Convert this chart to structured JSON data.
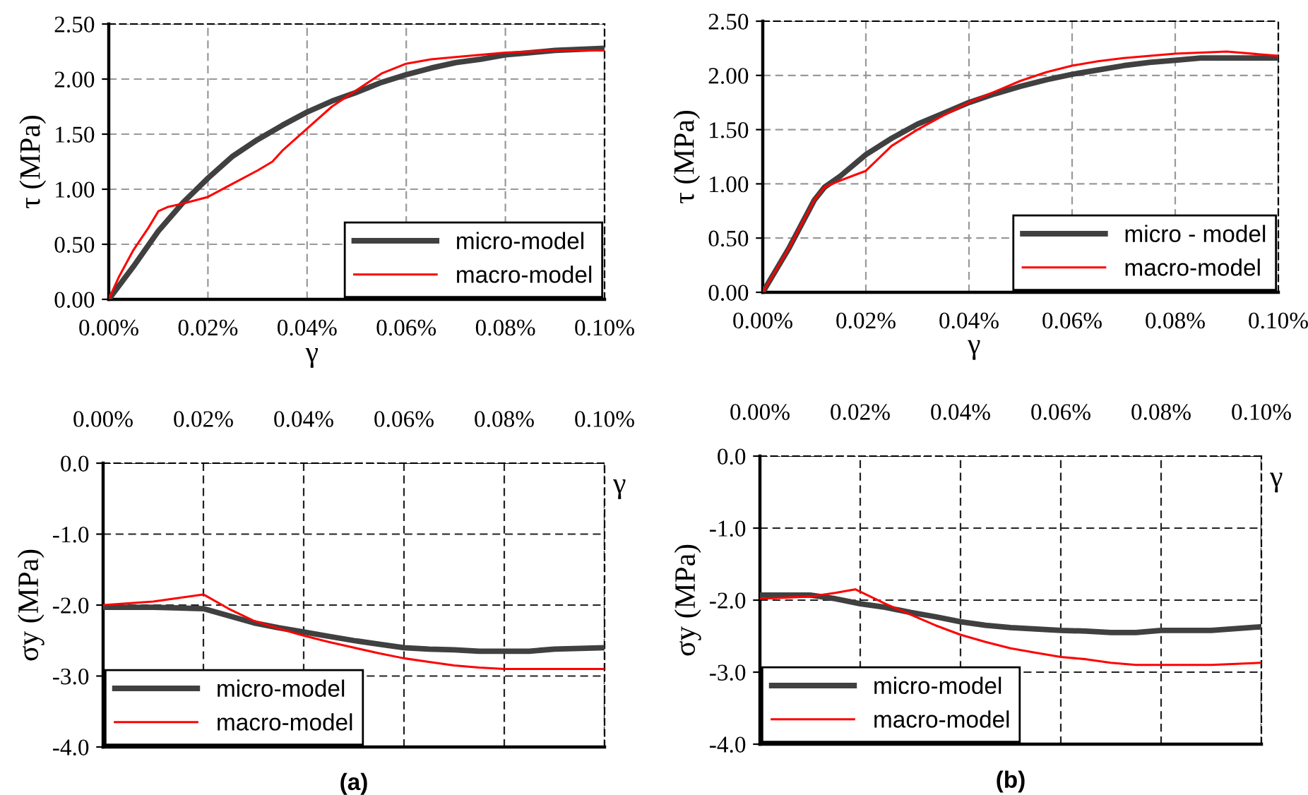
{
  "chart_data": [
    {
      "type": "line",
      "ylabel": "τ (MPa)",
      "xlabel": "γ",
      "xlim": [
        0,
        0.1
      ],
      "ylim": [
        0,
        2.5
      ],
      "xticks": [
        {
          "value": 0,
          "label": "0.00%"
        },
        {
          "value": 0.02,
          "label": "0.02%"
        },
        {
          "value": 0.04,
          "label": "0.04%"
        },
        {
          "value": 0.06,
          "label": "0.06%"
        },
        {
          "value": 0.08,
          "label": "0.08%"
        },
        {
          "value": 0.1,
          "label": "0.10%"
        }
      ],
      "yticks": [
        {
          "value": 0,
          "label": "0.00"
        },
        {
          "value": 0.5,
          "label": "0.50"
        },
        {
          "value": 1,
          "label": "1.00"
        },
        {
          "value": 1.5,
          "label": "1.50"
        },
        {
          "value": 2,
          "label": "2.00"
        },
        {
          "value": 2.5,
          "label": "2.50"
        }
      ],
      "grid": true,
      "legend": "bottom right",
      "line_style": "solid",
      "series": [
        {
          "name": "micro-model",
          "color": "#404040",
          "x": [
            0,
            0.005,
            0.01,
            0.015,
            0.02,
            0.025,
            0.03,
            0.035,
            0.04,
            0.045,
            0.05,
            0.055,
            0.06,
            0.065,
            0.07,
            0.075,
            0.08,
            0.085,
            0.09,
            0.095,
            0.1
          ],
          "values": [
            0,
            0.3,
            0.62,
            0.88,
            1.1,
            1.3,
            1.45,
            1.58,
            1.7,
            1.8,
            1.88,
            1.97,
            2.04,
            2.1,
            2.15,
            2.18,
            2.22,
            2.24,
            2.26,
            2.27,
            2.28
          ]
        },
        {
          "name": "macro-model",
          "color": "#ff0000",
          "x": [
            0,
            0.002,
            0.005,
            0.008,
            0.01,
            0.012,
            0.015,
            0.02,
            0.025,
            0.03,
            0.033,
            0.035,
            0.04,
            0.045,
            0.05,
            0.055,
            0.06,
            0.065,
            0.07,
            0.08,
            0.09,
            0.1
          ],
          "values": [
            0,
            0.2,
            0.45,
            0.65,
            0.8,
            0.84,
            0.87,
            0.93,
            1.05,
            1.17,
            1.25,
            1.35,
            1.55,
            1.75,
            1.9,
            2.05,
            2.14,
            2.18,
            2.2,
            2.24,
            2.26,
            2.26
          ]
        }
      ]
    },
    {
      "type": "line",
      "ylabel": "τ (MPa)",
      "xlabel": "γ",
      "xlim": [
        0,
        0.1
      ],
      "ylim": [
        0,
        2.5
      ],
      "xticks": [
        {
          "value": 0,
          "label": "0.00%"
        },
        {
          "value": 0.02,
          "label": "0.02%"
        },
        {
          "value": 0.04,
          "label": "0.04%"
        },
        {
          "value": 0.06,
          "label": "0.06%"
        },
        {
          "value": 0.08,
          "label": "0.08%"
        },
        {
          "value": 0.1,
          "label": "0.10%"
        }
      ],
      "yticks": [
        {
          "value": 0,
          "label": "0.00"
        },
        {
          "value": 0.5,
          "label": "0.50"
        },
        {
          "value": 1,
          "label": "1.00"
        },
        {
          "value": 1.5,
          "label": "1.50"
        },
        {
          "value": 2,
          "label": "2.00"
        },
        {
          "value": 2.5,
          "label": "2.50"
        }
      ],
      "grid": true,
      "legend": "bottom right",
      "line_style": "solid",
      "series": [
        {
          "name": "micro - model",
          "color": "#404040",
          "x": [
            0,
            0.005,
            0.01,
            0.012,
            0.015,
            0.02,
            0.025,
            0.03,
            0.035,
            0.04,
            0.045,
            0.05,
            0.055,
            0.06,
            0.065,
            0.07,
            0.075,
            0.08,
            0.085,
            0.1
          ],
          "values": [
            0,
            0.4,
            0.85,
            0.97,
            1.07,
            1.27,
            1.42,
            1.55,
            1.65,
            1.75,
            1.83,
            1.9,
            1.96,
            2.01,
            2.05,
            2.09,
            2.12,
            2.14,
            2.16,
            2.16
          ]
        },
        {
          "name": "macro-model",
          "color": "#ff0000",
          "x": [
            0,
            0.005,
            0.01,
            0.012,
            0.015,
            0.02,
            0.025,
            0.03,
            0.035,
            0.04,
            0.045,
            0.05,
            0.055,
            0.06,
            0.065,
            0.07,
            0.08,
            0.09,
            0.1
          ],
          "values": [
            0,
            0.4,
            0.85,
            0.97,
            1.03,
            1.12,
            1.35,
            1.5,
            1.63,
            1.75,
            1.85,
            1.95,
            2.03,
            2.09,
            2.13,
            2.16,
            2.2,
            2.22,
            2.18
          ]
        }
      ]
    },
    {
      "type": "line",
      "ylabel": "σy (MPa)",
      "xlabel": "γ",
      "xlim": [
        0,
        0.1
      ],
      "ylim": [
        -4,
        0
      ],
      "xticks": [
        {
          "value": 0,
          "label": "0.00%"
        },
        {
          "value": 0.02,
          "label": "0.02%"
        },
        {
          "value": 0.04,
          "label": "0.04%"
        },
        {
          "value": 0.06,
          "label": "0.06%"
        },
        {
          "value": 0.08,
          "label": "0.08%"
        },
        {
          "value": 0.1,
          "label": "0.10%"
        }
      ],
      "yticks": [
        {
          "value": -4,
          "label": "-4.0"
        },
        {
          "value": -3,
          "label": "-3.0"
        },
        {
          "value": -2,
          "label": "-2.0"
        },
        {
          "value": -1,
          "label": "-1.0"
        },
        {
          "value": 0,
          "label": "0.0"
        }
      ],
      "grid": true,
      "legend": "bottom left",
      "line_style": "solid",
      "annotations": [
        "(a)"
      ],
      "series": [
        {
          "name": "micro-model",
          "color": "#404040",
          "x": [
            0,
            0.01,
            0.02,
            0.025,
            0.03,
            0.035,
            0.04,
            0.045,
            0.05,
            0.055,
            0.06,
            0.065,
            0.07,
            0.075,
            0.08,
            0.085,
            0.09,
            0.1
          ],
          "values": [
            -2.03,
            -2.03,
            -2.05,
            -2.15,
            -2.25,
            -2.32,
            -2.38,
            -2.44,
            -2.5,
            -2.55,
            -2.6,
            -2.62,
            -2.63,
            -2.65,
            -2.65,
            -2.65,
            -2.62,
            -2.6
          ]
        },
        {
          "name": "macro-model",
          "color": "#ff0000",
          "x": [
            0,
            0.01,
            0.015,
            0.02,
            0.025,
            0.03,
            0.035,
            0.04,
            0.045,
            0.05,
            0.055,
            0.06,
            0.065,
            0.07,
            0.075,
            0.08,
            0.1
          ],
          "values": [
            -2.0,
            -1.95,
            -1.9,
            -1.85,
            -2.05,
            -2.22,
            -2.33,
            -2.43,
            -2.52,
            -2.6,
            -2.68,
            -2.75,
            -2.8,
            -2.85,
            -2.88,
            -2.9,
            -2.9
          ]
        }
      ]
    },
    {
      "type": "line",
      "ylabel": "σy (MPa)",
      "xlabel": "γ",
      "xlim": [
        0,
        0.1
      ],
      "ylim": [
        -4,
        0
      ],
      "xticks": [
        {
          "value": 0,
          "label": "0.00%"
        },
        {
          "value": 0.02,
          "label": "0.02%"
        },
        {
          "value": 0.04,
          "label": "0.04%"
        },
        {
          "value": 0.06,
          "label": "0.06%"
        },
        {
          "value": 0.08,
          "label": "0.08%"
        },
        {
          "value": 0.1,
          "label": "0.10%"
        }
      ],
      "yticks": [
        {
          "value": -4,
          "label": "-4.0"
        },
        {
          "value": -3,
          "label": "-3.0"
        },
        {
          "value": -2,
          "label": "-2.0"
        },
        {
          "value": -1,
          "label": "-1.0"
        },
        {
          "value": 0,
          "label": "0.0"
        }
      ],
      "grid": true,
      "legend": "bottom left",
      "line_style": "solid",
      "annotations": [
        "(b)"
      ],
      "series": [
        {
          "name": "micro-model",
          "color": "#404040",
          "x": [
            0,
            0.01,
            0.015,
            0.02,
            0.025,
            0.03,
            0.035,
            0.04,
            0.045,
            0.05,
            0.055,
            0.06,
            0.065,
            0.07,
            0.075,
            0.08,
            0.09,
            0.1
          ],
          "values": [
            -1.93,
            -1.93,
            -1.98,
            -2.05,
            -2.1,
            -2.17,
            -2.23,
            -2.3,
            -2.35,
            -2.38,
            -2.4,
            -2.42,
            -2.43,
            -2.45,
            -2.45,
            -2.42,
            -2.42,
            -2.37
          ]
        },
        {
          "name": "macro-model",
          "color": "#ff0000",
          "x": [
            0,
            0.01,
            0.015,
            0.019,
            0.022,
            0.025,
            0.03,
            0.035,
            0.04,
            0.045,
            0.05,
            0.055,
            0.06,
            0.065,
            0.07,
            0.075,
            0.08,
            0.09,
            0.1
          ],
          "values": [
            -1.98,
            -1.95,
            -1.9,
            -1.85,
            -1.95,
            -2.05,
            -2.2,
            -2.35,
            -2.48,
            -2.58,
            -2.67,
            -2.73,
            -2.79,
            -2.82,
            -2.87,
            -2.9,
            -2.9,
            -2.9,
            -2.87
          ]
        }
      ]
    }
  ]
}
